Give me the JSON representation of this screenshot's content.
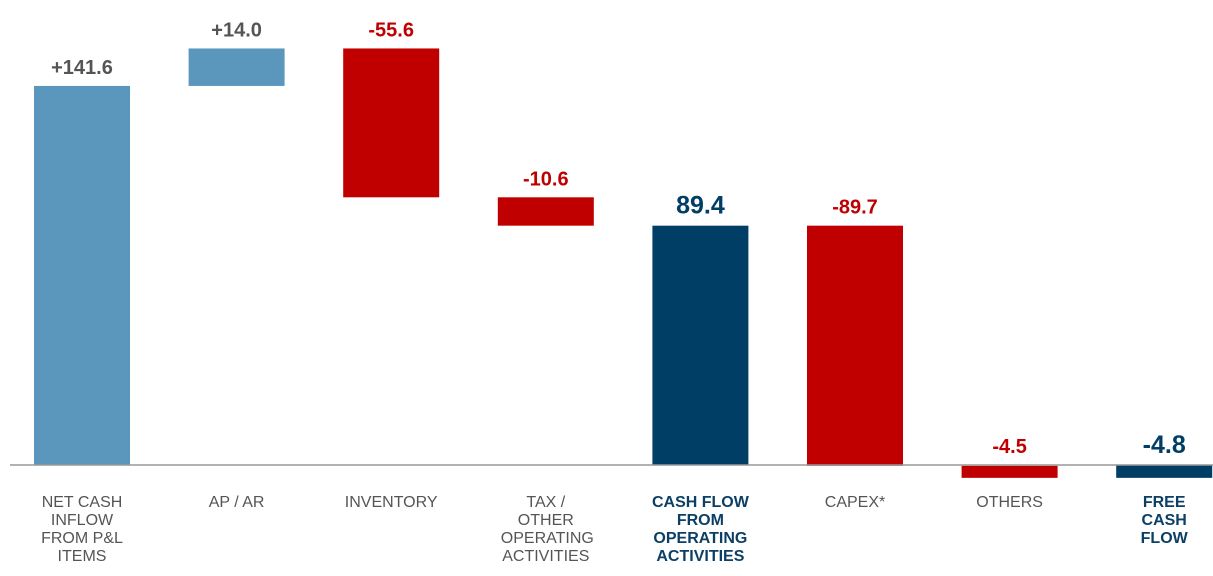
{
  "chart_data": {
    "type": "bar",
    "subtype": "waterfall",
    "categories": [
      "NET CASH INFLOW FROM P&L ITEMS",
      "AP / AR",
      "INVENTORY",
      "TAX / OTHER OPERATING ACTIVITIES",
      "CASH FLOW FROM OPERATING ACTIVITIES",
      "CAPEX*",
      "OTHERS",
      "FREE CASH FLOW"
    ],
    "values": [
      141.6,
      14.0,
      -55.6,
      -10.6,
      89.4,
      -89.7,
      -4.5,
      -4.8
    ],
    "value_labels": [
      "+141.6",
      "+14.0",
      "-55.6",
      "-10.6",
      "89.4",
      "-89.7",
      "-4.5",
      "-4.8"
    ],
    "bar_kinds": [
      "increase",
      "increase",
      "decrease",
      "decrease",
      "total",
      "decrease",
      "decrease",
      "total"
    ],
    "bold_categories": [
      "CASH FLOW FROM OPERATING ACTIVITIES",
      "FREE CASH FLOW"
    ],
    "ylim": [
      -5,
      160
    ],
    "grid": false,
    "colors": {
      "increase": "#5b97bd",
      "decrease": "#c00000",
      "total": "#003e66",
      "label_increase": "#555555",
      "label_decrease": "#c00000",
      "label_total": "#003e66",
      "baseline": "#999999"
    }
  }
}
